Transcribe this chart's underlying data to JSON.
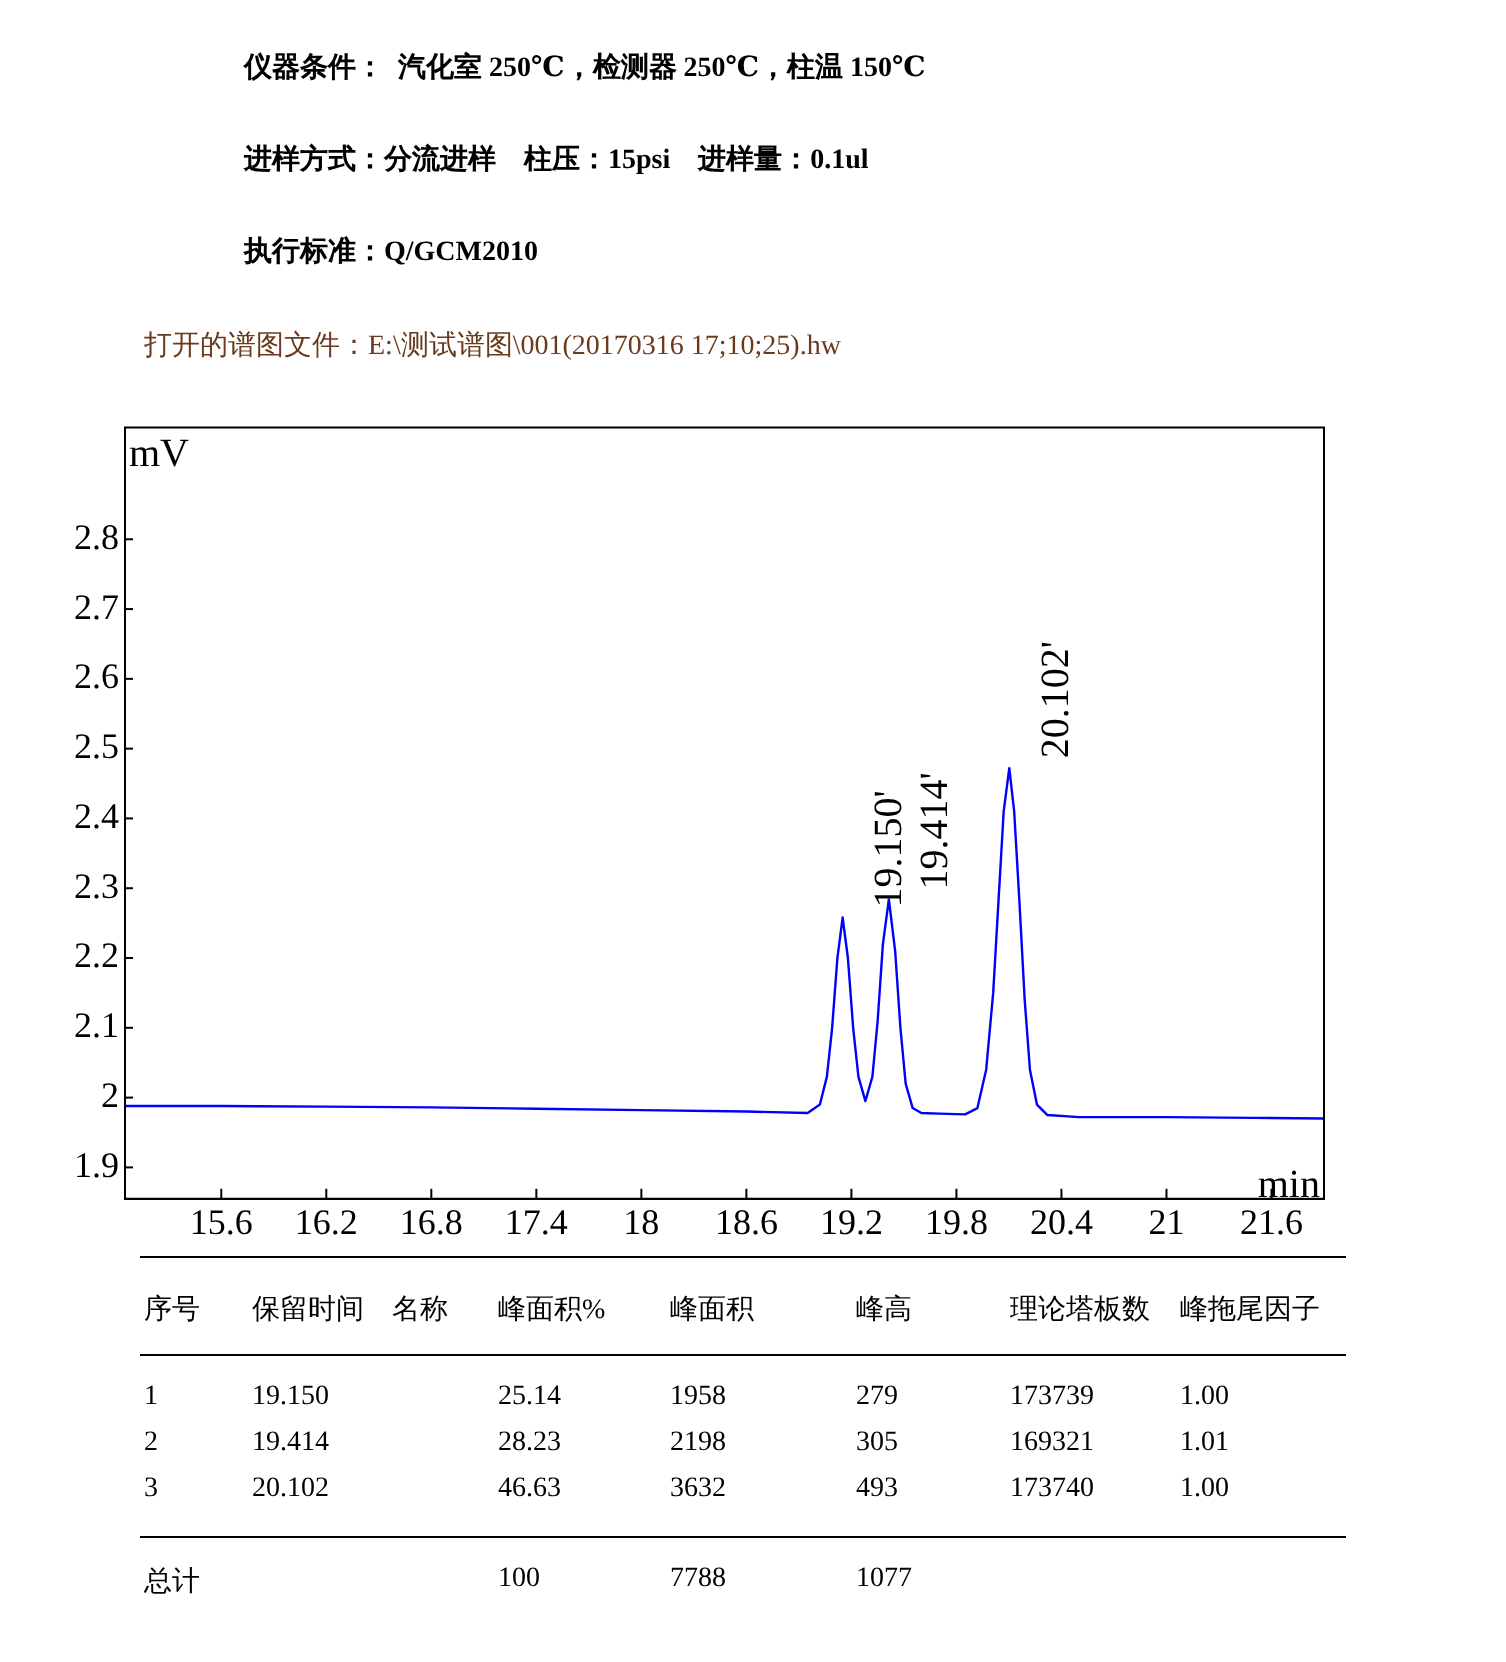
{
  "chart_data": {
    "type": "line",
    "xlabel": "min",
    "ylabel": "mV",
    "x": [
      15.05,
      15.6,
      16.2,
      16.8,
      17.4,
      18.0,
      18.6,
      18.95,
      19.02,
      19.06,
      19.09,
      19.12,
      19.15,
      19.18,
      19.21,
      19.24,
      19.28,
      19.32,
      19.35,
      19.38,
      19.414,
      19.45,
      19.48,
      19.51,
      19.55,
      19.6,
      19.7,
      19.85,
      19.92,
      19.97,
      20.01,
      20.04,
      20.07,
      20.102,
      20.13,
      20.16,
      20.19,
      20.22,
      20.26,
      20.32,
      20.5,
      21.0,
      21.5,
      21.9
    ],
    "series": [
      {
        "color": "#0000ff",
        "values": [
          1.988,
          1.988,
          1.987,
          1.986,
          1.984,
          1.982,
          1.98,
          1.978,
          1.99,
          2.03,
          2.1,
          2.2,
          2.258,
          2.2,
          2.1,
          2.03,
          1.995,
          2.03,
          2.11,
          2.22,
          2.284,
          2.21,
          2.1,
          2.02,
          1.985,
          1.978,
          1.977,
          1.976,
          1.985,
          2.04,
          2.15,
          2.28,
          2.41,
          2.472,
          2.41,
          2.28,
          2.14,
          2.04,
          1.99,
          1.975,
          1.972,
          1.972,
          1.971,
          1.97
        ]
      }
    ],
    "xlim": [
      15.05,
      21.9
    ],
    "ylim": [
      1.855,
      2.96
    ],
    "xticks": [
      15.6,
      16.2,
      16.8,
      17.4,
      18,
      18.6,
      19.2,
      19.8,
      20.4,
      21,
      21.6
    ],
    "yticks": [
      1.9,
      2,
      2.1,
      2.2,
      2.3,
      2.4,
      2.5,
      2.6,
      2.7,
      2.8
    ],
    "grid": false,
    "legend": false,
    "marker": "none",
    "line_style": "solid",
    "annotations": [
      "仪器条件：  汽化室 250℃，检测器 250℃，柱温 150℃",
      "进样方式：分流进样    柱压：15psi    进样量：0.1ul",
      "执行标准：Q/GCM2010",
      "打开的谱图文件：E:\\测试谱图\\001(20170316 17;10;25).hw",
      "序号",
      "保留时间",
      "名称",
      "峰面积%",
      "峰面积",
      "峰高",
      "理论塔板数",
      "峰拖尾因子",
      "1",
      "19.150",
      "25.14",
      "1958",
      "279",
      "173739",
      "1.00",
      "2",
      "19.414",
      "28.23",
      "2198",
      "305",
      "169321",
      "1.01",
      "3",
      "20.102",
      "46.63",
      "3632",
      "493",
      "173740",
      "1.00",
      "总计",
      "100",
      "7788",
      "1077",
      {
        "text": "19.150'",
        "x": 19.15,
        "y": 2.258
      },
      {
        "text": "19.414'",
        "x": 19.414,
        "y": 2.284
      },
      {
        "text": "20.102'",
        "x": 20.102,
        "y": 2.472
      }
    ]
  }
}
